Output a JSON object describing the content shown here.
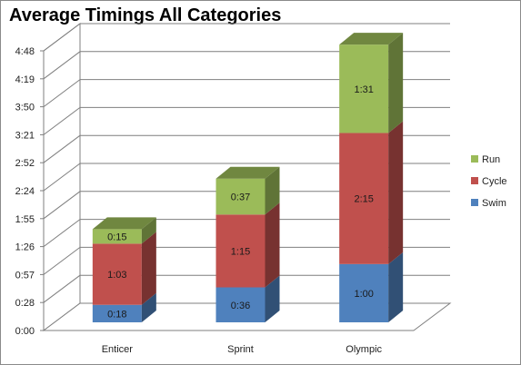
{
  "chart_data": {
    "type": "bar",
    "stacked": true,
    "three_d": true,
    "title": "Average Timings All Categories",
    "xlabel": "",
    "ylabel": "",
    "categories": [
      "Enticer",
      "Sprint",
      "Olympic"
    ],
    "series": [
      {
        "name": "Swim",
        "color": "#4f81bd",
        "values": [
          18,
          36,
          60
        ],
        "labels": [
          "0:18",
          "0:36",
          "1:00"
        ]
      },
      {
        "name": "Cycle",
        "color": "#c0504d",
        "values": [
          63,
          75,
          135
        ],
        "labels": [
          "1:03",
          "1:15",
          "2:15"
        ]
      },
      {
        "name": "Run",
        "color": "#9bbb59",
        "values": [
          15,
          37,
          91
        ],
        "labels": [
          "0:15",
          "0:37",
          "1:31"
        ]
      }
    ],
    "y_unit": "minutes",
    "ylim": [
      0,
      288
    ],
    "y_ticks": [
      0,
      28.8,
      57.6,
      86.4,
      115.2,
      144,
      172.8,
      201.6,
      230.4,
      259.2,
      288
    ],
    "y_tick_labels": [
      "0:00",
      "0:28",
      "0:57",
      "1:26",
      "1:55",
      "2:24",
      "2:52",
      "3:21",
      "3:50",
      "4:19",
      "4:48"
    ],
    "grid": true,
    "legend_position": "right",
    "legend_order": [
      "Run",
      "Cycle",
      "Swim"
    ]
  }
}
